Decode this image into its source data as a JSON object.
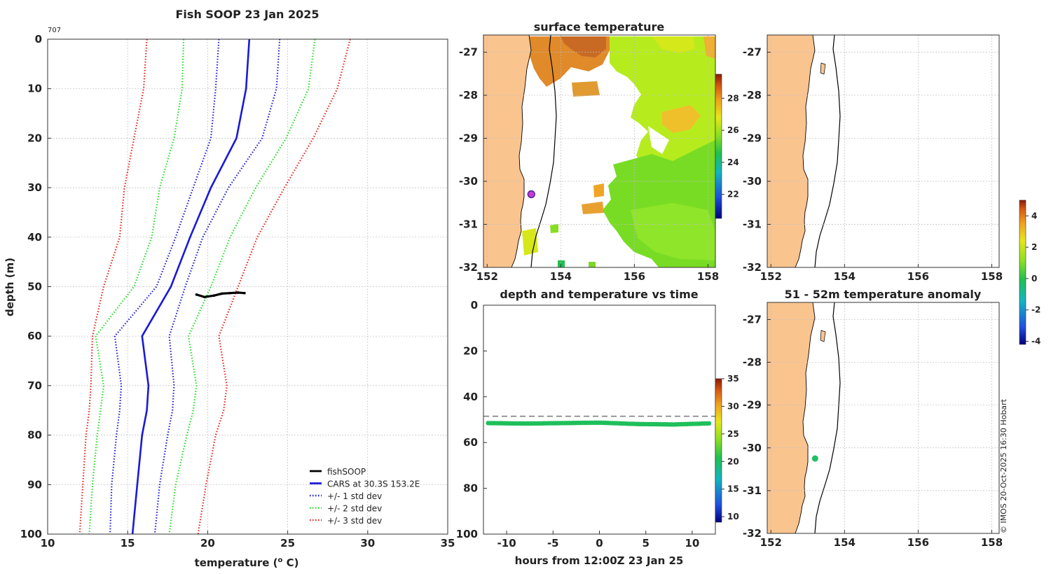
{
  "figure": {
    "copyright": "© IMOS 20-Oct-2025 16:30 Hobart"
  },
  "chart_data": [
    {
      "id": "profile",
      "type": "line",
      "title": "Fish SOOP 23 Jan 2025",
      "corner_label": "707",
      "xlabel": "temperature (",
      "xlabel_sup": "o",
      "xlabel_end": " C)",
      "ylabel": "depth (m)",
      "xlim": [
        10,
        35
      ],
      "ylim": [
        0,
        100
      ],
      "y_inverted": true,
      "xticks": [
        "10",
        "15",
        "20",
        "25",
        "30",
        "35"
      ],
      "yticks": [
        "0",
        "10",
        "20",
        "30",
        "40",
        "50",
        "60",
        "70",
        "80",
        "90",
        "100"
      ],
      "depth": [
        0,
        10,
        20,
        30,
        40,
        50,
        60,
        70,
        75,
        80,
        90,
        100
      ],
      "series": [
        {
          "name": "+/- 3 std dev",
          "color": "#e8231a",
          "style": "dotted",
          "x": [
            28.9,
            28.1,
            26.6,
            24.8,
            23.1,
            21.9,
            20.7,
            21.2,
            21.0,
            20.5,
            19.9,
            19.4
          ]
        },
        {
          "name": "+/- 2 std dev",
          "color": "#22dd22",
          "style": "dotted",
          "x": [
            26.7,
            26.3,
            24.9,
            23.0,
            21.4,
            20.2,
            18.8,
            19.3,
            19.1,
            18.7,
            18.0,
            17.6
          ]
        },
        {
          "name": "+/- 1 std dev",
          "color": "#1a1ad6",
          "style": "dotted",
          "x": [
            24.5,
            24.3,
            23.4,
            21.3,
            19.7,
            18.6,
            17.6,
            17.9,
            17.8,
            17.5,
            17.0,
            16.7
          ]
        },
        {
          "name": "CARS at 30.3S 153.2E",
          "color": "#1a1ad6",
          "style": "solid",
          "x": [
            22.6,
            22.4,
            21.8,
            20.2,
            18.9,
            17.7,
            15.9,
            16.3,
            16.2,
            15.9,
            15.6,
            15.3
          ]
        },
        {
          "name": "+/- 1 std dev",
          "color": "#1a1ad6",
          "style": "dotted",
          "x": [
            20.7,
            20.5,
            20.2,
            19.1,
            18.0,
            16.8,
            14.2,
            14.6,
            14.5,
            14.3,
            14.0,
            13.9
          ]
        },
        {
          "name": "+/- 2 std dev",
          "color": "#22dd22",
          "style": "dotted",
          "x": [
            18.5,
            18.4,
            17.9,
            17.0,
            16.5,
            15.4,
            13.0,
            13.5,
            13.3,
            13.1,
            12.8,
            12.6
          ]
        },
        {
          "name": "+/- 3 std dev",
          "color": "#e8231a",
          "style": "dotted",
          "x": [
            16.2,
            16.0,
            15.4,
            14.8,
            14.5,
            13.5,
            12.8,
            12.7,
            12.6,
            12.4,
            12.2,
            12.0
          ]
        }
      ],
      "obs": {
        "name": "fishSOOP",
        "color": "#000000",
        "temp": [
          19.3,
          19.8,
          20.4,
          20.9,
          21.4,
          21.9,
          22.3
        ],
        "depth": [
          51.6,
          52.1,
          51.8,
          51.4,
          51.3,
          51.2,
          51.3
        ]
      },
      "legend": [
        {
          "label": "fishSOOP",
          "color": "#000000",
          "style": "solid"
        },
        {
          "label": "CARS at 30.3S 153.2E",
          "color": "#1a1ad6",
          "style": "solid"
        },
        {
          "label": "+/- 1 std dev",
          "color": "#1a1ad6",
          "style": "dotted"
        },
        {
          "label": "+/- 2 std dev",
          "color": "#22dd22",
          "style": "dotted"
        },
        {
          "label": "+/- 3 std dev",
          "color": "#e8231a",
          "style": "dotted"
        }
      ],
      "legend_position": "bottom-right"
    },
    {
      "id": "sst_map",
      "type": "heatmap",
      "title": "surface temperature",
      "xlim": [
        151.9,
        158.2
      ],
      "ylim": [
        -32,
        -26.6
      ],
      "xticks": [
        "152",
        "154",
        "156",
        "158"
      ],
      "yticks": [
        "-27",
        "-28",
        "-29",
        "-30",
        "-31",
        "-32"
      ],
      "colorbar": {
        "ticks": [
          "22",
          "24",
          "26",
          "28"
        ],
        "range": [
          20.5,
          29.5
        ]
      },
      "marker": {
        "lon": 153.2,
        "lat": -30.3,
        "color": "#c23bd6"
      }
    },
    {
      "id": "map_top_right",
      "type": "heatmap",
      "title": "",
      "xlim": [
        151.9,
        158.2
      ],
      "ylim": [
        -32,
        -26.6
      ],
      "xticks": [
        "152",
        "154",
        "156",
        "158"
      ],
      "yticks": [
        "-27",
        "-28",
        "-29",
        "-30",
        "-31",
        "-32"
      ]
    },
    {
      "id": "depth_time",
      "type": "scatter",
      "title": "depth and temperature vs time",
      "xlabel": "hours from 12:00Z 23 Jan 25",
      "xlim": [
        -12.5,
        12.5
      ],
      "ylim": [
        0,
        100
      ],
      "y_inverted": true,
      "xticks": [
        "-10",
        "-5",
        "0",
        "5",
        "10"
      ],
      "yticks": [
        "0",
        "20",
        "40",
        "60",
        "80",
        "100"
      ],
      "reference_depth": 48.5,
      "points_hours": [
        -12,
        -8,
        -4,
        0,
        4,
        8,
        12
      ],
      "points_depth": [
        51.5,
        51.7,
        51.5,
        51.3,
        51.9,
        52.1,
        51.6
      ],
      "points_temp": 21,
      "colorbar": {
        "ticks": [
          "10",
          "15",
          "20",
          "25",
          "30",
          "35"
        ],
        "range": [
          9,
          35
        ]
      }
    },
    {
      "id": "anomaly_map",
      "type": "scatter",
      "title": "51 - 52m temperature anomaly",
      "xlim": [
        151.9,
        158.2
      ],
      "ylim": [
        -32,
        -26.6
      ],
      "xticks": [
        "152",
        "154",
        "156",
        "158"
      ],
      "yticks": [
        "-27",
        "-28",
        "-29",
        "-30",
        "-31",
        "-32"
      ],
      "marker": {
        "lon": 153.2,
        "lat": -30.25,
        "anomaly": 0.3,
        "color": "#20c060"
      },
      "colorbar": {
        "ticks": [
          "4",
          "2",
          "0",
          "-2",
          "-4"
        ],
        "range": [
          -4.2,
          5
        ]
      }
    }
  ]
}
